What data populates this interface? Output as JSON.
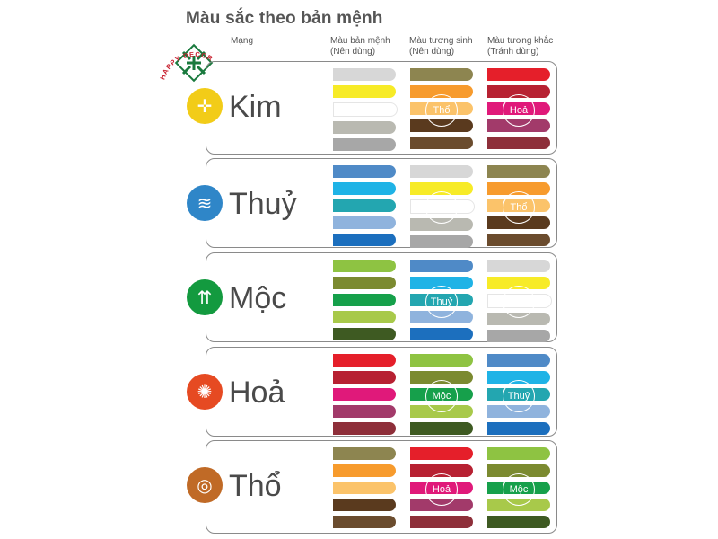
{
  "title": "Màu sắc theo bản mệnh",
  "headers": {
    "mang": "Mạng",
    "col1": "Màu bản mệnh\n(Nên dùng)",
    "col2": "Màu tương sinh\n(Nên dùng)",
    "col3": "Màu tương khắc\n(Tránh dùng)"
  },
  "logo_text": "HAPPY DECOR",
  "colors": {
    "white": "#ffffff",
    "lightgray": "#d7d7d7",
    "yellow": "#f7eb27",
    "gray": "#b9b9b1",
    "darkgray": "#a7a7a7",
    "olive": "#8d8550",
    "orange": "#f79b2d",
    "lightorange": "#fbc36a",
    "brown": "#5a3a1e",
    "darkbrown": "#6b4c2e",
    "red": "#e51f2a",
    "darkred": "#b72132",
    "magenta": "#e0197a",
    "plum": "#a23a6a",
    "maroon": "#8e2f3a",
    "blue": "#4f8ac7",
    "cyan": "#1fb3e6",
    "teal": "#23a6b0",
    "lightblue": "#8fb3dd",
    "royal": "#1c6fbe",
    "lime": "#8ec342",
    "olivegreen": "#7b8a30",
    "green": "#16a04b",
    "yellowgreen": "#a8c94a",
    "darkgreen": "#3e5a22"
  },
  "elements": [
    {
      "name": "Kim",
      "emblem_color": "#f2cc18",
      "col1": [
        "lightgray",
        "yellow",
        "white",
        "gray",
        "darkgray"
      ],
      "col2": [
        "olive",
        "orange",
        "lightorange",
        "brown",
        "darkbrown"
      ],
      "col2_label": "Thổ",
      "col3": [
        "red",
        "darkred",
        "magenta",
        "plum",
        "maroon"
      ],
      "col3_label": "Hoả"
    },
    {
      "name": "Thuỷ",
      "emblem_color": "#2f86c8",
      "col1": [
        "blue",
        "cyan",
        "teal",
        "lightblue",
        "royal"
      ],
      "col2": [
        "lightgray",
        "yellow",
        "white",
        "gray",
        "darkgray"
      ],
      "col2_label": "Kim",
      "col3": [
        "olive",
        "orange",
        "lightorange",
        "brown",
        "darkbrown"
      ],
      "col3_label": "Thổ"
    },
    {
      "name": "Mộc",
      "emblem_color": "#139a3f",
      "col1": [
        "lime",
        "olivegreen",
        "green",
        "yellowgreen",
        "darkgreen"
      ],
      "col2": [
        "blue",
        "cyan",
        "teal",
        "lightblue",
        "royal"
      ],
      "col2_label": "Thuỷ",
      "col3": [
        "lightgray",
        "yellow",
        "white",
        "gray",
        "darkgray"
      ],
      "col3_label": "Kim"
    },
    {
      "name": "Hoả",
      "emblem_color": "#e64a22",
      "col1": [
        "red",
        "darkred",
        "magenta",
        "plum",
        "maroon"
      ],
      "col2": [
        "lime",
        "olivegreen",
        "green",
        "yellowgreen",
        "darkgreen"
      ],
      "col2_label": "Mộc",
      "col3": [
        "blue",
        "cyan",
        "teal",
        "lightblue",
        "royal"
      ],
      "col3_label": "Thuỷ"
    },
    {
      "name": "Thổ",
      "emblem_color": "#c06a26",
      "col1": [
        "olive",
        "orange",
        "lightorange",
        "brown",
        "darkbrown"
      ],
      "col2": [
        "red",
        "darkred",
        "magenta",
        "plum",
        "maroon"
      ],
      "col2_label": "Hoả",
      "col3": [
        "lime",
        "olivegreen",
        "green",
        "yellowgreen",
        "darkgreen"
      ],
      "col3_label": "Mộc"
    }
  ]
}
